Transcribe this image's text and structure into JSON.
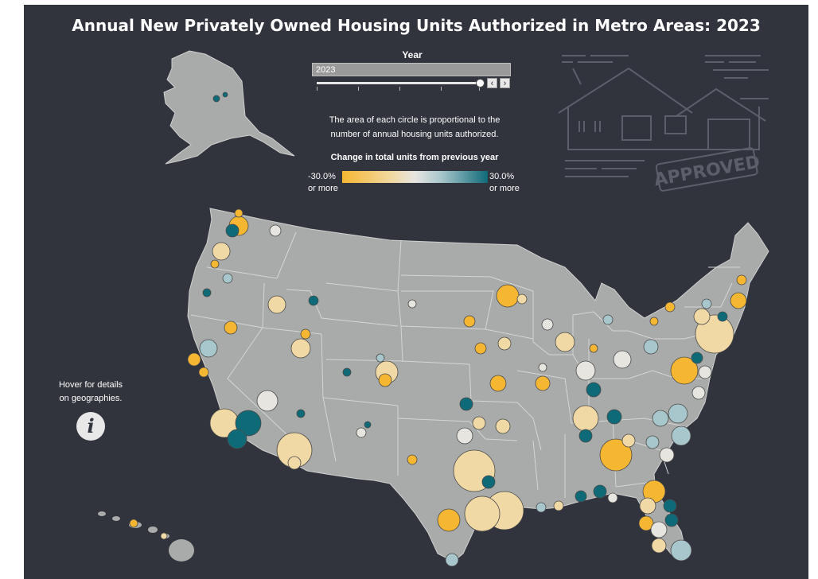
{
  "title": "Annual New Privately Owned Housing Units Authorized in Metro Areas: 2023",
  "year_filter": {
    "label": "Year",
    "selected": "2023",
    "prev_icon": "chevron-left-icon",
    "next_icon": "chevron-right-icon"
  },
  "size_note_line1": "The area of each circle is proportional to the",
  "size_note_line2": "number of annual housing units authorized.",
  "legend": {
    "title": "Change in total units from previous year",
    "min_label_1": "-30.0%",
    "min_label_2": "or more",
    "max_label_1": "30.0%",
    "max_label_2": "or more",
    "colors": [
      "#f5b731",
      "#f1d9a6",
      "#e7e5e0",
      "#a8c7cc",
      "#0f6a78"
    ]
  },
  "hover_hint_1": "Hover for details",
  "hover_hint_2": "on geographies.",
  "info_icon": "info-icon",
  "decoration": {
    "icon": "house-approved-illustration",
    "stamp_text": "APPROVED"
  },
  "colors": {
    "background": "#31333d",
    "land": "#a9abaa",
    "borders": "#cfd0cf"
  }
}
